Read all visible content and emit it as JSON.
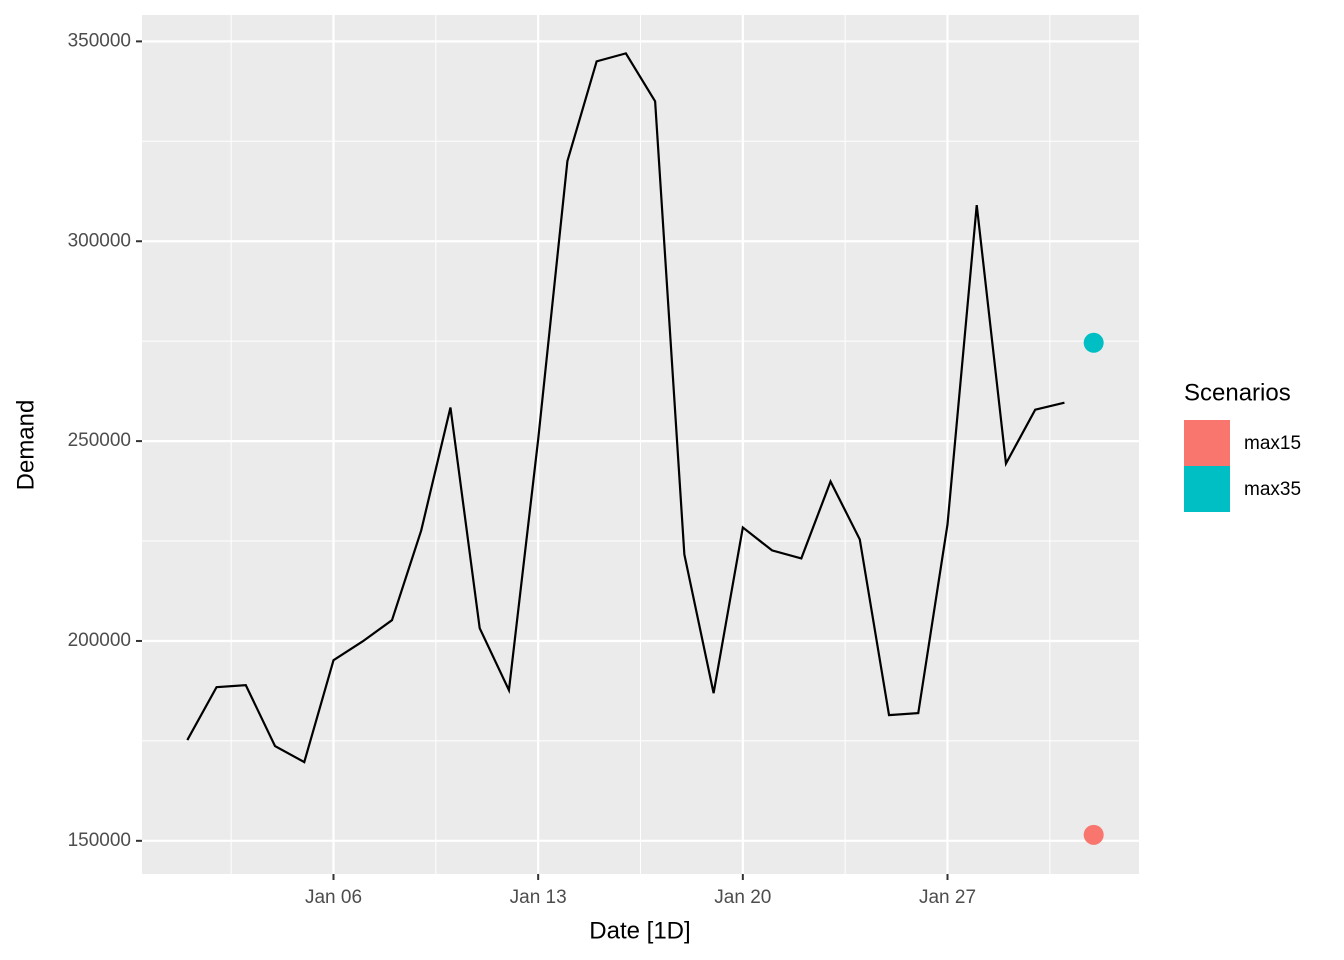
{
  "chart_data": {
    "type": "line",
    "x_label": "Date [1D]",
    "y_label": "Demand",
    "line": {
      "color": "#000000",
      "x": [
        1,
        2,
        3,
        4,
        5,
        6,
        7,
        8,
        9,
        10,
        11,
        12,
        13,
        14,
        15,
        16,
        17,
        18,
        19,
        20,
        21,
        22,
        23,
        24,
        25,
        26,
        27,
        28,
        29,
        30,
        31
      ],
      "values": [
        175200,
        188450,
        188950,
        173700,
        169700,
        195200,
        199900,
        205200,
        227650,
        258400,
        203200,
        187700,
        250400,
        320050,
        345000,
        347000,
        335000,
        221650,
        186950,
        228400,
        222650,
        220650,
        239900,
        225400,
        181450,
        181950,
        229150,
        309050,
        244400,
        257850,
        259600
      ]
    },
    "legend_title": "Scenarios",
    "series": [
      {
        "name": "max15",
        "color": "#F8766D",
        "x": [
          32
        ],
        "values": [
          151500
        ]
      },
      {
        "name": "max35",
        "color": "#00BFC4",
        "x": [
          32
        ],
        "values": [
          274600
        ]
      }
    ],
    "xlim": [
      -0.55,
      33.55
    ],
    "xticks": [
      {
        "value": 6,
        "label": "Jan 06"
      },
      {
        "value": 13,
        "label": "Jan 13"
      },
      {
        "value": 20,
        "label": "Jan 20"
      },
      {
        "value": 27,
        "label": "Jan 27"
      }
    ],
    "xminorticks": [
      2.5,
      9.5,
      16.5,
      23.5,
      30.5
    ],
    "ylim": [
      141700,
      356600
    ],
    "yticks": [
      150000,
      200000,
      250000,
      300000,
      350000
    ],
    "yminorticks": [
      175000,
      225000,
      275000,
      325000
    ],
    "grid": true,
    "legend": "right"
  }
}
